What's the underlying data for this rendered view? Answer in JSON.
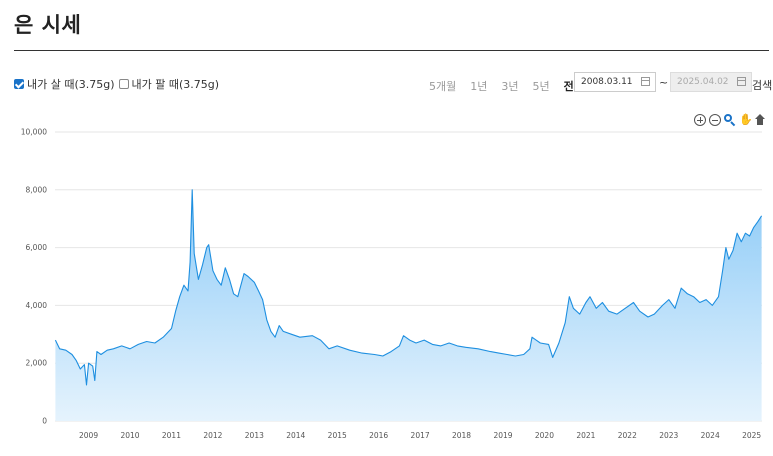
{
  "page_title": "은 시세",
  "filters": {
    "buy_label": "내가 살 때(3.75g)",
    "buy_checked": true,
    "sell_label": "내가 팔 때(3.75g)",
    "sell_checked": false
  },
  "range_buttons": [
    {
      "label": "5개월",
      "active": false
    },
    {
      "label": "1년",
      "active": false
    },
    {
      "label": "3년",
      "active": false
    },
    {
      "label": "5년",
      "active": false
    },
    {
      "label": "전체",
      "active": true
    }
  ],
  "date_from": "2008.03.11",
  "date_to": "2025.04.02",
  "tilde": "~",
  "search_label": "검색",
  "toolbar_icons": [
    "zoom-in-icon",
    "zoom-out-icon",
    "zoom-select-icon",
    "pan-icon",
    "home-icon"
  ],
  "colors": {
    "line": "#1e8fe0",
    "fill_top": "#8ecbf7",
    "fill_bottom": "#e5f3fd",
    "grid": "#e6e6e6"
  },
  "chart_data": {
    "type": "area",
    "title": "",
    "xlabel": "",
    "ylabel": "",
    "ylim": [
      0,
      10000
    ],
    "y_ticks": [
      "0",
      "2,000",
      "4,000",
      "6,000",
      "8,000",
      "10,000"
    ],
    "y_tick_values": [
      0,
      2000,
      4000,
      6000,
      8000,
      10000
    ],
    "x_ticks": [
      "2009",
      "2010",
      "2011",
      "2012",
      "2013",
      "2014",
      "2015",
      "2016",
      "2017",
      "2018",
      "2019",
      "2020",
      "2021",
      "2022",
      "2023",
      "2024",
      "2025"
    ],
    "x_range": [
      2008.19,
      2025.25
    ],
    "grid": true,
    "series": [
      {
        "values": [
          [
            2008.2,
            2800
          ],
          [
            2008.3,
            2500
          ],
          [
            2008.45,
            2450
          ],
          [
            2008.6,
            2300
          ],
          [
            2008.7,
            2100
          ],
          [
            2008.8,
            1800
          ],
          [
            2008.9,
            1950
          ],
          [
            2008.95,
            1250
          ],
          [
            2009.0,
            2000
          ],
          [
            2009.1,
            1900
          ],
          [
            2009.15,
            1400
          ],
          [
            2009.2,
            2400
          ],
          [
            2009.3,
            2300
          ],
          [
            2009.45,
            2450
          ],
          [
            2009.6,
            2500
          ],
          [
            2009.8,
            2600
          ],
          [
            2010.0,
            2500
          ],
          [
            2010.2,
            2650
          ],
          [
            2010.4,
            2750
          ],
          [
            2010.6,
            2700
          ],
          [
            2010.8,
            2900
          ],
          [
            2011.0,
            3200
          ],
          [
            2011.1,
            3800
          ],
          [
            2011.2,
            4300
          ],
          [
            2011.3,
            4700
          ],
          [
            2011.4,
            4500
          ],
          [
            2011.45,
            5500
          ],
          [
            2011.5,
            8000
          ],
          [
            2011.55,
            5800
          ],
          [
            2011.65,
            4900
          ],
          [
            2011.75,
            5400
          ],
          [
            2011.85,
            6000
          ],
          [
            2011.9,
            6100
          ],
          [
            2012.0,
            5200
          ],
          [
            2012.1,
            4900
          ],
          [
            2012.2,
            4700
          ],
          [
            2012.3,
            5300
          ],
          [
            2012.4,
            4900
          ],
          [
            2012.5,
            4400
          ],
          [
            2012.6,
            4300
          ],
          [
            2012.75,
            5100
          ],
          [
            2012.85,
            5000
          ],
          [
            2013.0,
            4800
          ],
          [
            2013.1,
            4500
          ],
          [
            2013.2,
            4200
          ],
          [
            2013.3,
            3500
          ],
          [
            2013.4,
            3100
          ],
          [
            2013.5,
            2900
          ],
          [
            2013.6,
            3300
          ],
          [
            2013.7,
            3100
          ],
          [
            2013.9,
            3000
          ],
          [
            2014.1,
            2900
          ],
          [
            2014.4,
            2950
          ],
          [
            2014.6,
            2800
          ],
          [
            2014.8,
            2500
          ],
          [
            2015.0,
            2600
          ],
          [
            2015.3,
            2450
          ],
          [
            2015.6,
            2350
          ],
          [
            2015.9,
            2300
          ],
          [
            2016.1,
            2250
          ],
          [
            2016.3,
            2400
          ],
          [
            2016.5,
            2600
          ],
          [
            2016.6,
            2950
          ],
          [
            2016.75,
            2800
          ],
          [
            2016.9,
            2700
          ],
          [
            2017.1,
            2800
          ],
          [
            2017.3,
            2650
          ],
          [
            2017.5,
            2600
          ],
          [
            2017.7,
            2700
          ],
          [
            2017.9,
            2600
          ],
          [
            2018.1,
            2550
          ],
          [
            2018.4,
            2500
          ],
          [
            2018.7,
            2400
          ],
          [
            2018.9,
            2350
          ],
          [
            2019.1,
            2300
          ],
          [
            2019.3,
            2250
          ],
          [
            2019.5,
            2300
          ],
          [
            2019.65,
            2500
          ],
          [
            2019.7,
            2900
          ],
          [
            2019.8,
            2800
          ],
          [
            2019.9,
            2700
          ],
          [
            2020.1,
            2650
          ],
          [
            2020.2,
            2200
          ],
          [
            2020.35,
            2700
          ],
          [
            2020.5,
            3400
          ],
          [
            2020.6,
            4300
          ],
          [
            2020.7,
            3900
          ],
          [
            2020.85,
            3700
          ],
          [
            2021.0,
            4100
          ],
          [
            2021.1,
            4300
          ],
          [
            2021.25,
            3900
          ],
          [
            2021.4,
            4100
          ],
          [
            2021.55,
            3800
          ],
          [
            2021.75,
            3700
          ],
          [
            2021.95,
            3900
          ],
          [
            2022.15,
            4100
          ],
          [
            2022.3,
            3800
          ],
          [
            2022.5,
            3600
          ],
          [
            2022.65,
            3700
          ],
          [
            2022.85,
            4000
          ],
          [
            2023.0,
            4200
          ],
          [
            2023.15,
            3900
          ],
          [
            2023.3,
            4600
          ],
          [
            2023.45,
            4400
          ],
          [
            2023.6,
            4300
          ],
          [
            2023.75,
            4100
          ],
          [
            2023.9,
            4200
          ],
          [
            2024.05,
            4000
          ],
          [
            2024.2,
            4300
          ],
          [
            2024.3,
            5200
          ],
          [
            2024.38,
            6000
          ],
          [
            2024.45,
            5600
          ],
          [
            2024.55,
            5900
          ],
          [
            2024.65,
            6500
          ],
          [
            2024.75,
            6200
          ],
          [
            2024.85,
            6500
          ],
          [
            2024.95,
            6400
          ],
          [
            2025.05,
            6700
          ],
          [
            2025.15,
            6900
          ],
          [
            2025.24,
            7100
          ]
        ]
      }
    ]
  }
}
